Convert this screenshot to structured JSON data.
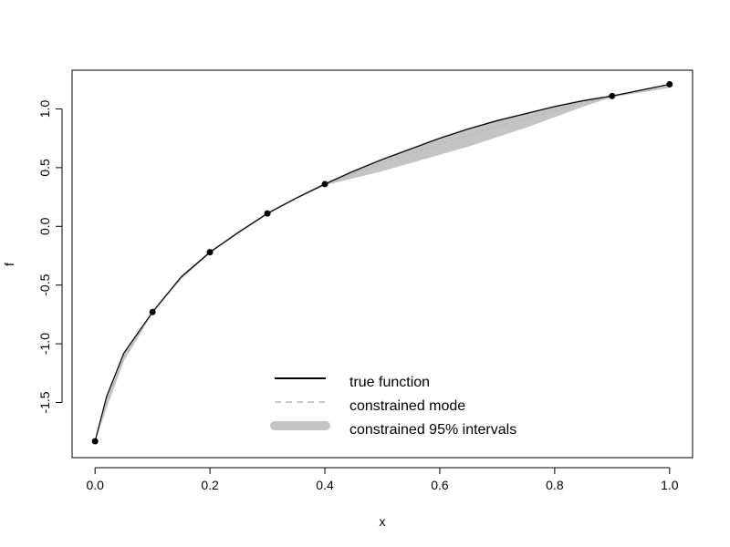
{
  "chart_data": {
    "type": "line",
    "title": "",
    "xlabel": "x",
    "ylabel": "f",
    "xlim": [
      -0.04,
      1.04
    ],
    "ylim": [
      -1.97,
      1.33
    ],
    "x_ticks": [
      0.0,
      0.2,
      0.4,
      0.6,
      0.8,
      1.0
    ],
    "x_tick_labels": [
      "0.0",
      "0.2",
      "0.4",
      "0.6",
      "0.8",
      "1.0"
    ],
    "y_ticks": [
      -1.5,
      -1.0,
      -0.5,
      0.0,
      0.5,
      1.0
    ],
    "y_tick_labels": [
      "-1.5",
      "-1.0",
      "-0.5",
      "0.0",
      "0.5",
      "1.0"
    ],
    "grid": false,
    "legend_position": "bottom-center",
    "series": [
      {
        "name": "true function",
        "style": "solid",
        "color": "#000000",
        "x": [
          0.0,
          0.02,
          0.05,
          0.1,
          0.15,
          0.2,
          0.25,
          0.3,
          0.35,
          0.4,
          0.45,
          0.5,
          0.55,
          0.6,
          0.65,
          0.7,
          0.75,
          0.8,
          0.85,
          0.9,
          0.95,
          1.0
        ],
        "y": [
          -1.83,
          -1.45,
          -1.08,
          -0.73,
          -0.43,
          -0.22,
          -0.05,
          0.11,
          0.24,
          0.36,
          0.47,
          0.57,
          0.66,
          0.75,
          0.83,
          0.9,
          0.96,
          1.02,
          1.07,
          1.11,
          1.16,
          1.21
        ]
      },
      {
        "name": "constrained mode",
        "style": "dashed",
        "color": "#b8b8b8",
        "x": [
          0.0,
          0.02,
          0.05,
          0.1,
          0.15,
          0.2,
          0.25,
          0.3,
          0.35,
          0.4,
          0.45,
          0.5,
          0.55,
          0.6,
          0.65,
          0.7,
          0.75,
          0.8,
          0.85,
          0.9,
          0.95,
          1.0
        ],
        "y": [
          -1.83,
          -1.5,
          -1.12,
          -0.73,
          -0.44,
          -0.22,
          -0.05,
          0.11,
          0.24,
          0.36,
          0.45,
          0.54,
          0.62,
          0.7,
          0.78,
          0.85,
          0.92,
          0.99,
          1.05,
          1.11,
          1.15,
          1.2
        ]
      }
    ],
    "interval": {
      "name": "constrained 95% intervals",
      "color": "#c4c4c4",
      "x": [
        0.0,
        0.02,
        0.05,
        0.1,
        0.15,
        0.2,
        0.25,
        0.3,
        0.35,
        0.4,
        0.45,
        0.5,
        0.55,
        0.6,
        0.65,
        0.7,
        0.75,
        0.8,
        0.85,
        0.9,
        0.95,
        1.0
      ],
      "lower": [
        -1.84,
        -1.55,
        -1.15,
        -0.74,
        -0.45,
        -0.23,
        -0.06,
        0.1,
        0.23,
        0.35,
        0.41,
        0.47,
        0.54,
        0.61,
        0.68,
        0.76,
        0.84,
        0.93,
        1.02,
        1.1,
        1.14,
        1.18
      ],
      "upper": [
        -1.82,
        -1.44,
        -1.07,
        -0.72,
        -0.42,
        -0.21,
        -0.04,
        0.12,
        0.25,
        0.37,
        0.48,
        0.58,
        0.67,
        0.76,
        0.84,
        0.91,
        0.97,
        1.03,
        1.08,
        1.12,
        1.16,
        1.21
      ]
    },
    "points": {
      "x": [
        0.0,
        0.1,
        0.2,
        0.3,
        0.4,
        0.9,
        1.0
      ],
      "y": [
        -1.83,
        -0.73,
        -0.22,
        0.11,
        0.36,
        1.11,
        1.21
      ]
    }
  },
  "legend": {
    "items": [
      {
        "label": "true function",
        "style": "solid",
        "color": "#000000"
      },
      {
        "label": "constrained mode",
        "style": "dashed",
        "color": "#b8b8b8"
      },
      {
        "label": "constrained 95% intervals",
        "style": "thick",
        "color": "#c4c4c4"
      }
    ]
  },
  "colors": {
    "axis": "#000000",
    "point": "#000000"
  }
}
